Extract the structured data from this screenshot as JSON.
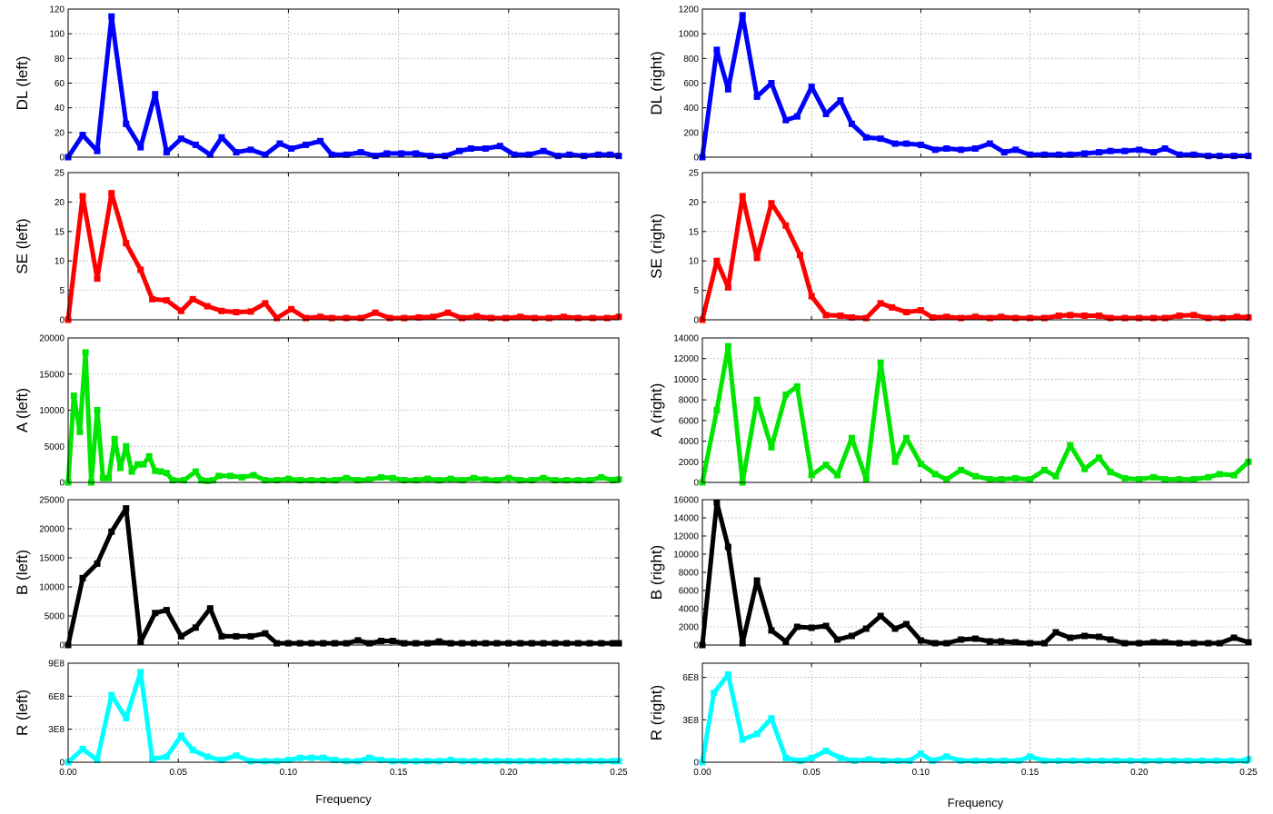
{
  "x_axis": {
    "label": "Frequency",
    "ticks": [
      "0.00",
      "0.05",
      "0.10",
      "0.15",
      "0.20",
      "0.25"
    ],
    "tick_values": [
      0,
      0.05,
      0.1,
      0.15,
      0.2,
      0.25
    ]
  },
  "chart_data": [
    {
      "type": "line",
      "ylabel": "DL (left)",
      "color": "#0000ff",
      "xlim": [
        0,
        0.25
      ],
      "ylim": [
        0,
        120
      ],
      "grid": true,
      "yticks": [
        0,
        20,
        40,
        60,
        80,
        100,
        120
      ],
      "yticklabels": [
        "0",
        "20",
        "40",
        "60",
        "80",
        "100",
        "120"
      ],
      "x": [
        0.0,
        0.0066,
        0.0132,
        0.0197,
        0.0263,
        0.0329,
        0.0395,
        0.0447,
        0.0513,
        0.0579,
        0.0645,
        0.0697,
        0.0763,
        0.0829,
        0.0895,
        0.0961,
        0.1013,
        0.1079,
        0.1145,
        0.1197,
        0.1263,
        0.1329,
        0.1395,
        0.1447,
        0.1513,
        0.1579,
        0.1645,
        0.1711,
        0.1776,
        0.1829,
        0.1895,
        0.1961,
        0.2026,
        0.2092,
        0.2158,
        0.2224,
        0.2276,
        0.2342,
        0.2408,
        0.2461,
        0.25
      ],
      "y": [
        0,
        18,
        5,
        114,
        27,
        8,
        51,
        4,
        15,
        10,
        2,
        16,
        4,
        6,
        2,
        11,
        7,
        10,
        13,
        2,
        2,
        4,
        1,
        3,
        3,
        3,
        1,
        1,
        5,
        7,
        7,
        9,
        2,
        2,
        5,
        1,
        2,
        1,
        2,
        2,
        1
      ]
    },
    {
      "type": "line",
      "ylabel": "SE (left)",
      "color": "#ff0000",
      "xlim": [
        0,
        0.25
      ],
      "ylim": [
        0,
        25
      ],
      "grid": true,
      "yticks": [
        0,
        5,
        10,
        15,
        20,
        25
      ],
      "yticklabels": [
        "0",
        "5",
        "10",
        "15",
        "20",
        "25"
      ],
      "x": [
        0.0,
        0.0066,
        0.0132,
        0.0197,
        0.0263,
        0.0329,
        0.0382,
        0.0447,
        0.0513,
        0.0566,
        0.0632,
        0.0697,
        0.0763,
        0.0829,
        0.0895,
        0.0947,
        0.1013,
        0.1079,
        0.1145,
        0.1197,
        0.1263,
        0.1329,
        0.1395,
        0.1461,
        0.1526,
        0.1592,
        0.1658,
        0.1724,
        0.1789,
        0.1855,
        0.1921,
        0.1987,
        0.2053,
        0.2118,
        0.2184,
        0.225,
        0.2316,
        0.2382,
        0.2447,
        0.25
      ],
      "y": [
        0,
        21,
        7,
        21.5,
        13,
        8.5,
        3.5,
        3.3,
        1.5,
        3.5,
        2.3,
        1.5,
        1.3,
        1.4,
        2.8,
        0.3,
        1.8,
        0.3,
        0.5,
        0.3,
        0.3,
        0.3,
        1.2,
        0.3,
        0.3,
        0.4,
        0.5,
        1.2,
        0.3,
        0.6,
        0.3,
        0.3,
        0.5,
        0.3,
        0.3,
        0.5,
        0.3,
        0.3,
        0.3,
        0.5
      ]
    },
    {
      "type": "line",
      "ylabel": "A (left)",
      "color": "#00e600",
      "xlim": [
        0,
        0.25
      ],
      "ylim": [
        0,
        20000
      ],
      "grid": true,
      "yticks": [
        0,
        5000,
        10000,
        15000,
        20000
      ],
      "yticklabels": [
        "0",
        "5000",
        "10000",
        "15000",
        "20000"
      ],
      "x": [
        0.0,
        0.0026,
        0.0053,
        0.0079,
        0.0105,
        0.0132,
        0.0158,
        0.0184,
        0.0211,
        0.0237,
        0.0263,
        0.0289,
        0.0316,
        0.0342,
        0.0368,
        0.0395,
        0.0421,
        0.0447,
        0.0474,
        0.0526,
        0.0579,
        0.0605,
        0.0632,
        0.0658,
        0.0684,
        0.0737,
        0.0789,
        0.0842,
        0.0895,
        0.0947,
        0.1,
        0.1053,
        0.1105,
        0.1158,
        0.1211,
        0.1263,
        0.1316,
        0.1368,
        0.1421,
        0.1474,
        0.1526,
        0.1579,
        0.1632,
        0.1684,
        0.1737,
        0.1789,
        0.1842,
        0.1895,
        0.1947,
        0.2,
        0.2053,
        0.2105,
        0.2158,
        0.2211,
        0.2263,
        0.2316,
        0.2368,
        0.2421,
        0.2474,
        0.25
      ],
      "y": [
        0,
        12000,
        7000,
        18000,
        0,
        10000,
        600,
        600,
        6000,
        2000,
        5000,
        1500,
        2500,
        2500,
        3600,
        1600,
        1500,
        1300,
        300,
        300,
        1500,
        300,
        200,
        300,
        900,
        900,
        700,
        1000,
        300,
        300,
        500,
        300,
        300,
        300,
        300,
        600,
        300,
        400,
        700,
        600,
        300,
        300,
        500,
        300,
        500,
        300,
        600,
        400,
        300,
        600,
        300,
        300,
        600,
        300,
        300,
        300,
        300,
        700,
        300,
        400
      ]
    },
    {
      "type": "line",
      "ylabel": "B (left)",
      "color": "#000000",
      "xlim": [
        0,
        0.25
      ],
      "ylim": [
        0,
        25000
      ],
      "grid": true,
      "yticks": [
        0,
        5000,
        10000,
        15000,
        20000,
        25000
      ],
      "yticklabels": [
        "0",
        "5000",
        "10000",
        "15000",
        "20000",
        "25000"
      ],
      "x": [
        0.0,
        0.0066,
        0.0132,
        0.0197,
        0.0263,
        0.0329,
        0.0395,
        0.0447,
        0.0513,
        0.0579,
        0.0645,
        0.0697,
        0.0763,
        0.0829,
        0.0895,
        0.0947,
        0.1,
        0.1053,
        0.1105,
        0.1158,
        0.1211,
        0.1263,
        0.1316,
        0.1368,
        0.1421,
        0.1474,
        0.1526,
        0.1579,
        0.1632,
        0.1684,
        0.1737,
        0.1789,
        0.1842,
        0.1895,
        0.1947,
        0.2,
        0.2053,
        0.2105,
        0.2158,
        0.2211,
        0.2263,
        0.2316,
        0.2368,
        0.2421,
        0.2474,
        0.25
      ],
      "y": [
        0,
        11500,
        14000,
        19500,
        23500,
        500,
        5500,
        6000,
        1500,
        3000,
        6300,
        1500,
        1500,
        1500,
        2000,
        300,
        300,
        300,
        300,
        300,
        300,
        300,
        800,
        300,
        700,
        700,
        300,
        300,
        300,
        600,
        300,
        300,
        300,
        300,
        300,
        300,
        300,
        300,
        300,
        300,
        300,
        300,
        300,
        300,
        300,
        300
      ]
    },
    {
      "type": "line",
      "ylabel": "R (left)",
      "color": "#00ffff",
      "xlim": [
        0,
        0.25
      ],
      "ylim": [
        0,
        900000000
      ],
      "grid": true,
      "yticks": [
        0,
        300000000,
        600000000,
        900000000
      ],
      "yticklabels": [
        "0",
        "3E8",
        "6E8",
        "9E8"
      ],
      "x": [
        0.0,
        0.0066,
        0.0132,
        0.0197,
        0.0263,
        0.0329,
        0.0382,
        0.0447,
        0.0513,
        0.0566,
        0.0632,
        0.0697,
        0.0763,
        0.0829,
        0.0895,
        0.0947,
        0.1,
        0.1053,
        0.1105,
        0.1158,
        0.1211,
        0.1263,
        0.1316,
        0.1368,
        0.1421,
        0.1474,
        0.1526,
        0.1579,
        0.1632,
        0.1684,
        0.1737,
        0.1789,
        0.1842,
        0.1895,
        0.1947,
        0.2,
        0.2053,
        0.2105,
        0.2158,
        0.2211,
        0.2263,
        0.2316,
        0.2368,
        0.2421,
        0.2474,
        0.25
      ],
      "y": [
        0,
        120000000,
        20000000,
        610000000,
        400000000,
        820000000,
        30000000,
        50000000,
        240000000,
        110000000,
        50000000,
        20000000,
        60000000,
        10000000,
        10000000,
        10000000,
        20000000,
        40000000,
        40000000,
        40000000,
        20000000,
        10000000,
        10000000,
        40000000,
        20000000,
        10000000,
        10000000,
        10000000,
        10000000,
        10000000,
        20000000,
        10000000,
        10000000,
        10000000,
        10000000,
        10000000,
        10000000,
        10000000,
        10000000,
        10000000,
        10000000,
        10000000,
        10000000,
        10000000,
        10000000,
        10000000
      ]
    },
    {
      "type": "line",
      "ylabel": "DL (right)",
      "color": "#0000ff",
      "xlim": [
        0,
        0.25
      ],
      "ylim": [
        0,
        1200
      ],
      "grid": true,
      "yticks": [
        0,
        200,
        400,
        600,
        800,
        1000,
        1200
      ],
      "yticklabels": [
        "0",
        "200",
        "400",
        "600",
        "800",
        "1000",
        "1200"
      ],
      "x": [
        0.0,
        0.0066,
        0.0118,
        0.0184,
        0.025,
        0.0316,
        0.0382,
        0.0434,
        0.05,
        0.0566,
        0.0632,
        0.0684,
        0.075,
        0.0816,
        0.0882,
        0.0934,
        0.1,
        0.1066,
        0.1118,
        0.1184,
        0.125,
        0.1316,
        0.1382,
        0.1434,
        0.15,
        0.1566,
        0.1632,
        0.1684,
        0.175,
        0.1816,
        0.1868,
        0.1934,
        0.2,
        0.2066,
        0.2118,
        0.2184,
        0.225,
        0.2316,
        0.2368,
        0.2434,
        0.25
      ],
      "y": [
        0,
        870,
        550,
        1150,
        490,
        600,
        300,
        330,
        570,
        350,
        460,
        270,
        160,
        150,
        110,
        110,
        100,
        60,
        70,
        60,
        70,
        110,
        40,
        60,
        20,
        20,
        20,
        20,
        30,
        40,
        50,
        50,
        60,
        40,
        70,
        20,
        20,
        10,
        10,
        10,
        10
      ]
    },
    {
      "type": "line",
      "ylabel": "SE (right)",
      "color": "#ff0000",
      "xlim": [
        0,
        0.25
      ],
      "ylim": [
        0,
        25
      ],
      "grid": true,
      "yticks": [
        0,
        5,
        10,
        15,
        20,
        25
      ],
      "yticklabels": [
        "0",
        "5",
        "10",
        "15",
        "20",
        "25"
      ],
      "x": [
        0.0,
        0.0066,
        0.0118,
        0.0184,
        0.025,
        0.0316,
        0.0382,
        0.0447,
        0.05,
        0.0566,
        0.0632,
        0.0684,
        0.075,
        0.0816,
        0.0868,
        0.0934,
        0.1,
        0.1053,
        0.1118,
        0.1184,
        0.125,
        0.1316,
        0.1368,
        0.1434,
        0.15,
        0.1566,
        0.1632,
        0.1684,
        0.175,
        0.1816,
        0.1868,
        0.1934,
        0.2,
        0.2066,
        0.2118,
        0.2184,
        0.225,
        0.2316,
        0.2382,
        0.2447,
        0.25
      ],
      "y": [
        0,
        10,
        5.5,
        21,
        10.5,
        19.8,
        16,
        11,
        4,
        0.8,
        0.7,
        0.4,
        0.3,
        2.8,
        2.1,
        1.3,
        1.6,
        0.4,
        0.5,
        0.3,
        0.5,
        0.3,
        0.5,
        0.3,
        0.3,
        0.3,
        0.7,
        0.8,
        0.7,
        0.7,
        0.3,
        0.3,
        0.3,
        0.3,
        0.3,
        0.7,
        0.8,
        0.3,
        0.3,
        0.5,
        0.4
      ]
    },
    {
      "type": "line",
      "ylabel": "A (right)",
      "color": "#00e600",
      "xlim": [
        0,
        0.25
      ],
      "ylim": [
        0,
        14000
      ],
      "grid": true,
      "yticks": [
        0,
        2000,
        4000,
        6000,
        8000,
        10000,
        12000,
        14000
      ],
      "yticklabels": [
        "0",
        "2000",
        "4000",
        "6000",
        "8000",
        "10000",
        "12000",
        "14000"
      ],
      "x": [
        0.0,
        0.0066,
        0.0118,
        0.0184,
        0.025,
        0.0316,
        0.0382,
        0.0434,
        0.05,
        0.0566,
        0.0618,
        0.0684,
        0.075,
        0.0816,
        0.0882,
        0.0934,
        0.1,
        0.1066,
        0.1118,
        0.1184,
        0.125,
        0.1316,
        0.1368,
        0.1434,
        0.15,
        0.1566,
        0.1618,
        0.1684,
        0.175,
        0.1816,
        0.1868,
        0.1934,
        0.2,
        0.2066,
        0.2118,
        0.2184,
        0.225,
        0.2316,
        0.2368,
        0.2434,
        0.25
      ],
      "y": [
        0,
        7000,
        13200,
        0,
        8000,
        3400,
        8500,
        9300,
        700,
        1700,
        700,
        4300,
        300,
        11600,
        2000,
        4300,
        1800,
        800,
        300,
        1200,
        600,
        300,
        300,
        400,
        300,
        1200,
        600,
        3600,
        1300,
        2400,
        1000,
        400,
        300,
        500,
        300,
        300,
        300,
        500,
        800,
        700,
        2000
      ]
    },
    {
      "type": "line",
      "ylabel": "B (right)",
      "color": "#000000",
      "xlim": [
        0,
        0.25
      ],
      "ylim": [
        0,
        16000
      ],
      "grid": true,
      "yticks": [
        0,
        2000,
        4000,
        6000,
        8000,
        10000,
        12000,
        14000,
        16000
      ],
      "yticklabels": [
        "0",
        "2000",
        "4000",
        "6000",
        "8000",
        "10000",
        "12000",
        "14000",
        "16000"
      ],
      "x": [
        0.0,
        0.0066,
        0.0118,
        0.0184,
        0.025,
        0.0316,
        0.0382,
        0.0434,
        0.05,
        0.0566,
        0.0618,
        0.0684,
        0.075,
        0.0816,
        0.0882,
        0.0934,
        0.1,
        0.1066,
        0.1118,
        0.1184,
        0.125,
        0.1316,
        0.1368,
        0.1434,
        0.15,
        0.1566,
        0.1618,
        0.1684,
        0.175,
        0.1816,
        0.1868,
        0.1934,
        0.2,
        0.2066,
        0.2118,
        0.2184,
        0.225,
        0.2316,
        0.2368,
        0.2434,
        0.25
      ],
      "y": [
        0,
        15700,
        10800,
        200,
        7100,
        1600,
        400,
        2000,
        1900,
        2100,
        600,
        1000,
        1800,
        3200,
        1800,
        2300,
        500,
        200,
        200,
        600,
        700,
        400,
        400,
        300,
        200,
        200,
        1400,
        800,
        1000,
        900,
        600,
        200,
        200,
        300,
        300,
        200,
        200,
        200,
        200,
        800,
        300
      ]
    },
    {
      "type": "line",
      "ylabel": "R (right)",
      "color": "#00ffff",
      "xlim": [
        0,
        0.25
      ],
      "ylim": [
        0,
        700000000
      ],
      "grid": true,
      "yticks": [
        0,
        300000000,
        600000000
      ],
      "yticklabels": [
        "0",
        "3E8",
        "6E8"
      ],
      "x": [
        0.0,
        0.0053,
        0.0118,
        0.0184,
        0.025,
        0.0316,
        0.0382,
        0.0447,
        0.05,
        0.0566,
        0.0632,
        0.0697,
        0.0763,
        0.0829,
        0.0895,
        0.0947,
        0.1,
        0.1053,
        0.1118,
        0.1184,
        0.125,
        0.1316,
        0.1382,
        0.1447,
        0.15,
        0.1566,
        0.1632,
        0.1697,
        0.1763,
        0.1829,
        0.1895,
        0.1961,
        0.2026,
        0.2092,
        0.2158,
        0.2224,
        0.2289,
        0.2355,
        0.2421,
        0.2487,
        0.25
      ],
      "y": [
        0,
        490000000,
        620000000,
        160000000,
        200000000,
        310000000,
        30000000,
        10000000,
        30000000,
        80000000,
        30000000,
        10000000,
        20000000,
        10000000,
        10000000,
        10000000,
        60000000,
        10000000,
        40000000,
        10000000,
        10000000,
        10000000,
        10000000,
        10000000,
        40000000,
        10000000,
        10000000,
        10000000,
        10000000,
        10000000,
        10000000,
        10000000,
        10000000,
        10000000,
        10000000,
        10000000,
        10000000,
        10000000,
        10000000,
        10000000,
        20000000
      ]
    }
  ]
}
